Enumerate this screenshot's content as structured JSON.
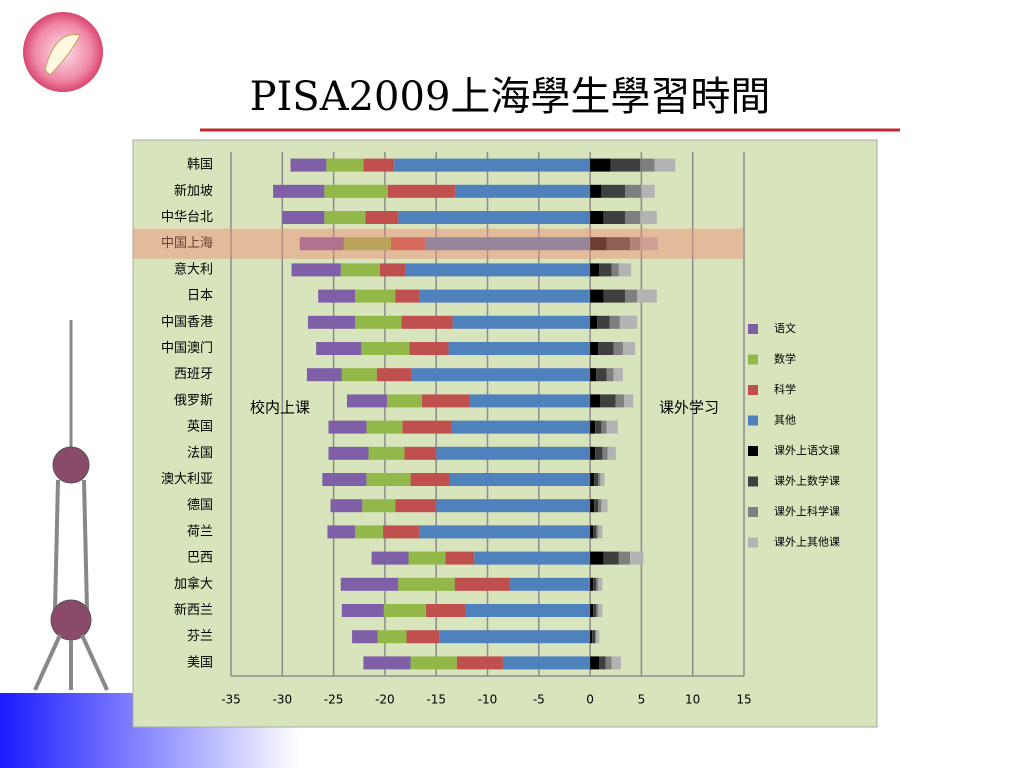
{
  "chart_data": {
    "type": "stacked-bar-horizontal",
    "title": "PISA2009上海學生學習時間",
    "annotations": [
      "校内上课",
      "课外学习"
    ],
    "categories": [
      "韩国",
      "新加坡",
      "中华台北",
      "中国上海",
      "意大利",
      "日本",
      "中国香港",
      "中国澳门",
      "西班牙",
      "俄罗斯",
      "英国",
      "法国",
      "澳大利亚",
      "德国",
      "荷兰",
      "巴西",
      "加拿大",
      "新西兰",
      "芬兰",
      "美国"
    ],
    "highlight_index": 3,
    "series": [
      {
        "name": "语文",
        "color": "#7f60a8",
        "values": [
          -3.5,
          -5.0,
          -4.1,
          -4.3,
          -4.8,
          -3.6,
          -4.6,
          -4.4,
          -3.4,
          -3.9,
          -3.7,
          -3.9,
          -4.3,
          -3.1,
          -2.7,
          -3.6,
          -5.6,
          -4.1,
          -2.5,
          -4.6
        ]
      },
      {
        "name": "数学",
        "color": "#92b84a",
        "values": [
          -3.6,
          -6.2,
          -4.0,
          -4.6,
          -3.8,
          -3.9,
          -4.5,
          -4.7,
          -3.4,
          -3.4,
          -3.5,
          -3.5,
          -4.3,
          -3.2,
          -2.7,
          -3.6,
          -5.5,
          -4.1,
          -2.8,
          -4.5
        ]
      },
      {
        "name": "科学",
        "color": "#c0504d",
        "values": [
          -3.0,
          -6.6,
          -3.2,
          -3.3,
          -2.5,
          -2.4,
          -5.0,
          -3.8,
          -3.4,
          -4.7,
          -4.8,
          -3.1,
          -3.8,
          -4.0,
          -3.6,
          -2.8,
          -5.4,
          -3.9,
          -3.2,
          -4.5
        ]
      },
      {
        "name": "其他",
        "color": "#4f81bd",
        "values": [
          -19.1,
          -13.1,
          -18.7,
          -16.1,
          -18.0,
          -16.6,
          -13.4,
          -13.8,
          -17.4,
          -11.7,
          -13.5,
          -15.0,
          -13.7,
          -15.0,
          -16.6,
          -11.3,
          -7.8,
          -12.1,
          -14.7,
          -8.5
        ]
      },
      {
        "name": "课外上语文课",
        "color": "#000000",
        "values": [
          2.0,
          1.1,
          1.3,
          1.6,
          0.9,
          1.3,
          0.7,
          0.8,
          0.6,
          1.0,
          0.5,
          0.5,
          0.4,
          0.4,
          0.3,
          1.3,
          0.3,
          0.3,
          0.2,
          0.9
        ]
      },
      {
        "name": "课外上数学课",
        "color": "#3f3f3f",
        "values": [
          2.9,
          2.3,
          2.1,
          2.3,
          1.2,
          2.1,
          1.2,
          1.5,
          1.0,
          1.5,
          0.6,
          0.7,
          0.4,
          0.4,
          0.3,
          1.5,
          0.3,
          0.3,
          0.3,
          0.6
        ]
      },
      {
        "name": "课外上科学课",
        "color": "#7f7f7f",
        "values": [
          1.4,
          1.6,
          1.5,
          1.0,
          0.7,
          1.2,
          1.0,
          0.9,
          0.7,
          0.8,
          0.5,
          0.5,
          0.2,
          0.3,
          0.2,
          1.1,
          0.2,
          0.2,
          0.1,
          0.6
        ]
      },
      {
        "name": "课外上其他课",
        "color": "#b3b3b3",
        "values": [
          2.0,
          1.3,
          1.6,
          1.7,
          1.2,
          1.9,
          1.7,
          1.2,
          0.9,
          0.9,
          1.1,
          0.8,
          0.4,
          0.6,
          0.4,
          1.3,
          0.4,
          0.4,
          0.3,
          0.9
        ]
      }
    ],
    "xlim": [
      -35,
      15
    ],
    "xticks": [
      -35,
      -30,
      -25,
      -20,
      -15,
      -10,
      -5,
      0,
      5,
      10,
      15
    ],
    "grid": true,
    "legend": "right"
  }
}
